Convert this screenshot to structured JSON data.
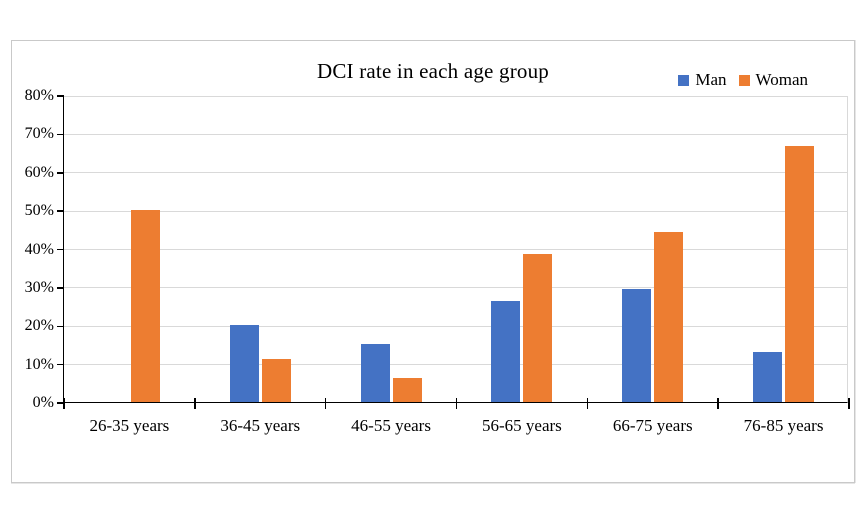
{
  "chart_data": {
    "type": "bar",
    "title": "DCI rate in each age group",
    "categories": [
      "26-35 years",
      "36-45 years",
      "46-55 years",
      "56-65 years",
      "66-75 years",
      "76-85 years"
    ],
    "series": [
      {
        "name": "Man",
        "color": "#4472C4",
        "values": [
          0,
          20,
          15.1,
          26.4,
          29.4,
          13.0
        ]
      },
      {
        "name": "Woman",
        "color": "#ED7D31",
        "values": [
          50,
          11.1,
          6.3,
          38.5,
          44.3,
          66.7
        ]
      }
    ],
    "xlabel": "",
    "ylabel": "",
    "ylim": [
      0,
      80
    ],
    "ytick_step": 10,
    "ytick_labels": [
      "0%",
      "10%",
      "20%",
      "30%",
      "40%",
      "50%",
      "60%",
      "70%",
      "80%"
    ],
    "grid": true,
    "gridline_color": "#d9d9d9",
    "axis_color": "#000000",
    "legend_position": "top-right"
  }
}
